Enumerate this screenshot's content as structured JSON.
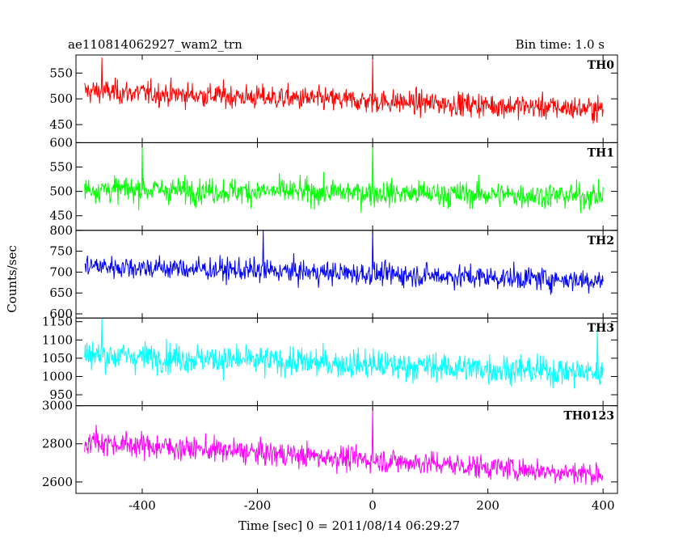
{
  "chart_data": {
    "type": "line",
    "title": "ae110814062927_wam2_trn",
    "subtitle": "Bin time: 1.0 s",
    "xlabel": "Time [sec] 0 = 2011/08/14 06:29:27",
    "ylabel": "Counts/sec",
    "xlim": [
      -515,
      425
    ],
    "x_ticks": [
      -400,
      -200,
      0,
      200,
      400
    ],
    "x_range": [
      -500,
      400
    ],
    "grid": false,
    "panels": [
      {
        "name": "TH0",
        "color": "#ff0000",
        "ylim": [
          415,
          585
        ],
        "y_ticks": [
          450,
          500,
          550
        ],
        "start_mean": 515,
        "end_mean": 480,
        "noise": 22,
        "sample_peaks": [
          {
            "x": -470,
            "y": 580
          },
          {
            "x": 0,
            "y": 575
          }
        ]
      },
      {
        "name": "TH1",
        "color": "#00ff00",
        "ylim": [
          420,
          600
        ],
        "y_ticks": [
          450,
          500,
          550,
          600
        ],
        "start_mean": 505,
        "end_mean": 490,
        "noise": 25,
        "sample_peaks": [
          {
            "x": -400,
            "y": 595
          },
          {
            "x": 0,
            "y": 600
          }
        ]
      },
      {
        "name": "TH2",
        "color": "#0000ff",
        "ylim": [
          590,
          800
        ],
        "y_ticks": [
          600,
          650,
          700,
          750,
          800
        ],
        "start_mean": 715,
        "end_mean": 680,
        "noise": 26,
        "sample_peaks": [
          {
            "x": -190,
            "y": 800
          },
          {
            "x": 0,
            "y": 800
          }
        ]
      },
      {
        "name": "TH3",
        "color": "#00ffff",
        "ylim": [
          920,
          1160
        ],
        "y_ticks": [
          950,
          1000,
          1050,
          1100,
          1150
        ],
        "start_mean": 1060,
        "end_mean": 1010,
        "noise": 38,
        "sample_peaks": [
          {
            "x": -470,
            "y": 1160
          },
          {
            "x": 390,
            "y": 1130
          }
        ]
      },
      {
        "name": "TH0123",
        "color": "#ff00ff",
        "ylim": [
          2540,
          3000
        ],
        "y_ticks": [
          2600,
          2800,
          3000
        ],
        "start_mean": 2810,
        "end_mean": 2640,
        "noise": 60,
        "sample_peaks": [
          {
            "x": 0,
            "y": 2990
          },
          {
            "x": -480,
            "y": 2900
          }
        ]
      }
    ]
  }
}
